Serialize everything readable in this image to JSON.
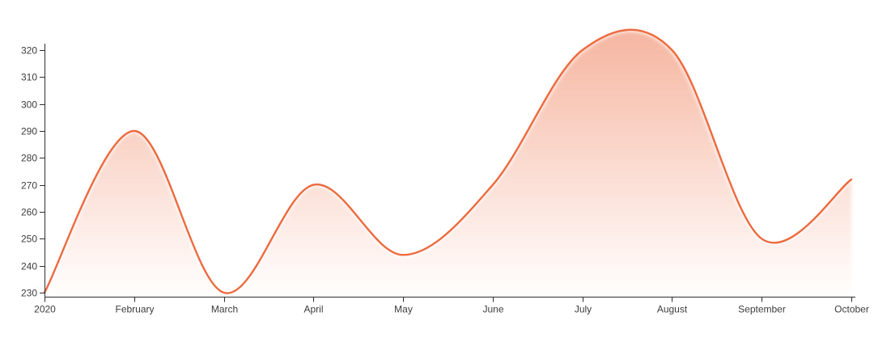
{
  "chart_data": {
    "type": "area",
    "title": "",
    "subtitle": "",
    "x_labels": [
      "2020",
      "February",
      "March",
      "April",
      "May",
      "June",
      "July",
      "August",
      "September",
      "October"
    ],
    "values": [
      230,
      290,
      230,
      270,
      244,
      270,
      320,
      320,
      250,
      272
    ],
    "series_name": "",
    "y_ticks": [
      230,
      240,
      250,
      260,
      270,
      280,
      290,
      300,
      310,
      320
    ],
    "ylim": [
      230,
      320
    ],
    "xlabel": "",
    "ylabel": "",
    "smooth": true,
    "grid": false,
    "legend_position": "none",
    "line_color": "#ec6a3e",
    "fill_color": "#ec6a3e",
    "fill_opacity_top": 0.5,
    "fill_opacity_bottom": 0.0,
    "axis_color": "#2f2f2f",
    "tick_label_color": "#3c3c3c"
  }
}
